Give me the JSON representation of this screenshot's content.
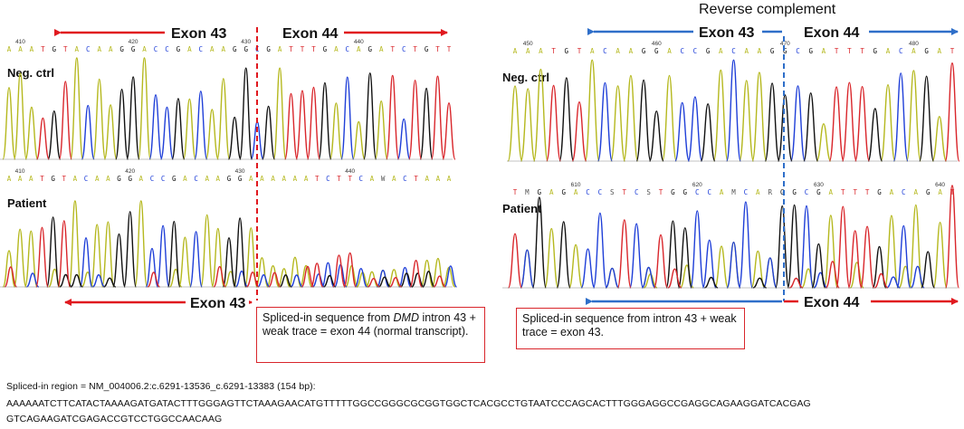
{
  "colors": {
    "A": "#b5b81e",
    "T": "#d9262b",
    "C": "#1f3fd8",
    "G": "#111111",
    "left_arrow": "#e0191f",
    "right_blue": "#2f6fc9",
    "right_red": "#e0191f"
  },
  "left": {
    "top_arrows": {
      "exon_a": "Exon 43",
      "exon_b": "Exon 44"
    },
    "neg": {
      "label": "Neg. ctrl",
      "seq": "AAATGTACAAGGACCGACAAGGCGATTTGACAGATCTGTT",
      "ticks": [
        {
          "text": "410",
          "i": 1
        },
        {
          "text": "420",
          "i": 11
        },
        {
          "text": "430",
          "i": 21
        },
        {
          "text": "440",
          "i": 31
        }
      ]
    },
    "patient": {
      "label": "Patient",
      "seq": "AAATGTACAAGGACCGACAAGGAAAAAATCTTCAWACTAAA",
      "ticks": [
        {
          "text": "410",
          "i": 1
        },
        {
          "text": "420",
          "i": 11
        },
        {
          "text": "430",
          "i": 21
        },
        {
          "text": "440",
          "i": 31
        }
      ]
    },
    "bottom_arrow": "Exon 43",
    "box_pre": "Spliced-in sequence from ",
    "box_gene": "DMD",
    "box_post": " intron 43 + weak trace = exon 44 (normal transcript)."
  },
  "right": {
    "title": "Reverse complement",
    "top_arrows": {
      "exon_a": "Exon 43",
      "exon_b": "Exon 44"
    },
    "neg": {
      "label": "Neg. ctrl",
      "seq": "AAATGTACAAGGACCGACAAGGCGATTTGACAGAT",
      "ticks": [
        {
          "text": "450",
          "i": 1
        },
        {
          "text": "460",
          "i": 11
        },
        {
          "text": "470",
          "i": 21
        },
        {
          "text": "480",
          "i": 31
        }
      ]
    },
    "patient": {
      "label": "Patient",
      "seq": "TMGAGACCSTCSTGGCCAMCARGGCGATTTGACAGAT",
      "ticks": [
        {
          "text": "610",
          "i": 5
        },
        {
          "text": "620",
          "i": 15
        },
        {
          "text": "630",
          "i": 25
        },
        {
          "text": "640",
          "i": 35
        }
      ]
    },
    "bottom_arrow": "Exon 44",
    "box_text": "Spliced-in sequence from intron 43 + weak trace = exon 43."
  },
  "footer": {
    "line1": "Spliced-in region = NM_004006.2:c.6291-13536_c.6291-13383  (154 bp):",
    "line2": "AAAAAATCTTCATACTAAAAGATGATACTTTGGGAGTTCTAAAGAACATGTTTTTGGCCGGGCGCGGTGGCTCACGCCTGTAATCCCAGCACTTTGGGAGGCCGAGGCAGAAGGATCACGAG",
    "line3": "GTCAGAAGATCGAGACCGTCCTGGCCAACAAG"
  }
}
